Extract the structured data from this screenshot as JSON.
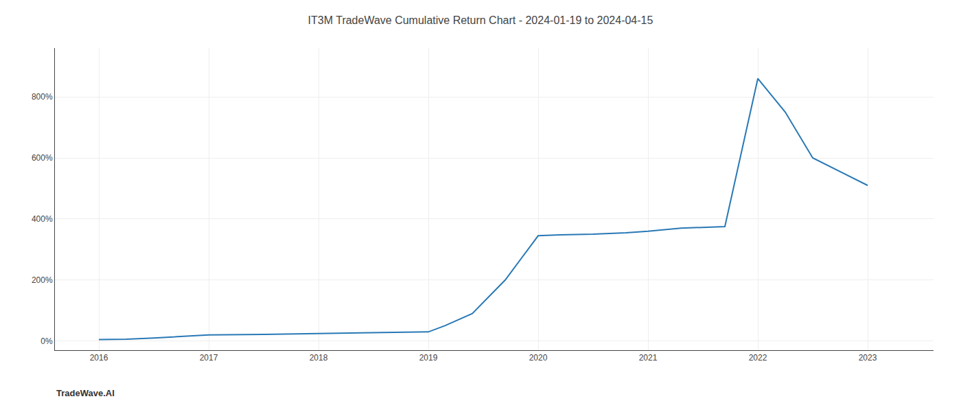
{
  "chart_data": {
    "type": "line",
    "title": "IT3M TradeWave Cumulative Return Chart - 2024-01-19 to 2024-04-15",
    "annotations": [
      "TradeWave.AI"
    ],
    "x": [
      2016.0,
      2016.25,
      2016.5,
      2017.0,
      2017.5,
      2018.0,
      2018.3,
      2018.6,
      2019.0,
      2019.15,
      2019.4,
      2019.7,
      2020.0,
      2020.2,
      2020.5,
      2020.8,
      2021.0,
      2021.3,
      2021.5,
      2021.7,
      2022.0,
      2022.25,
      2022.5,
      2023.0
    ],
    "values": [
      5,
      6,
      10,
      20,
      22,
      25,
      26,
      28,
      30,
      50,
      90,
      200,
      345,
      348,
      350,
      355,
      360,
      370,
      372,
      375,
      860,
      750,
      600,
      510
    ],
    "color": "#2878b5",
    "xlim": [
      2015.6,
      2023.6
    ],
    "xticks": [
      2016,
      2017,
      2018,
      2019,
      2020,
      2021,
      2022,
      2023
    ],
    "ylim": [
      -30,
      960
    ],
    "yticks": [
      {
        "value": 0,
        "label": "0%"
      },
      {
        "value": 200,
        "label": "200%"
      },
      {
        "value": 400,
        "label": "400%"
      },
      {
        "value": 600,
        "label": "600%"
      },
      {
        "value": 800,
        "label": "800%"
      }
    ],
    "grid": true
  }
}
